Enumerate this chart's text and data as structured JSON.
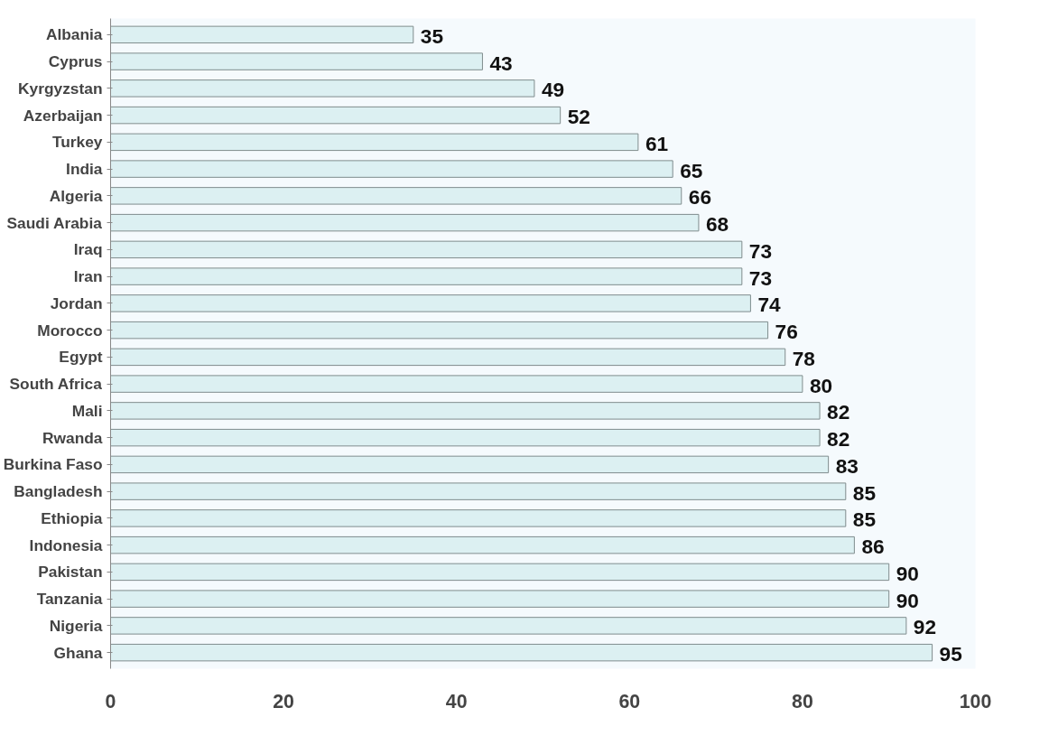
{
  "chart_data": {
    "type": "bar",
    "orientation": "horizontal",
    "categories": [
      "Albania",
      "Cyprus",
      "Kyrgyzstan",
      "Azerbaijan",
      "Turkey",
      "India",
      "Algeria",
      "Saudi Arabia",
      "Iraq",
      "Iran",
      "Jordan",
      "Morocco",
      "Egypt",
      "South Africa",
      "Mali",
      "Rwanda",
      "Burkina Faso",
      "Bangladesh",
      "Ethiopia",
      "Indonesia",
      "Pakistan",
      "Tanzania",
      "Nigeria",
      "Ghana"
    ],
    "values": [
      35,
      43,
      49,
      52,
      61,
      65,
      66,
      68,
      73,
      73,
      74,
      76,
      78,
      80,
      82,
      82,
      83,
      85,
      85,
      86,
      90,
      90,
      92,
      95
    ],
    "color": "#dcf0f2",
    "xlim": [
      0,
      100
    ],
    "xticks": [
      0,
      20,
      40,
      60,
      80,
      100
    ],
    "data_labels": true,
    "grid": false
  }
}
